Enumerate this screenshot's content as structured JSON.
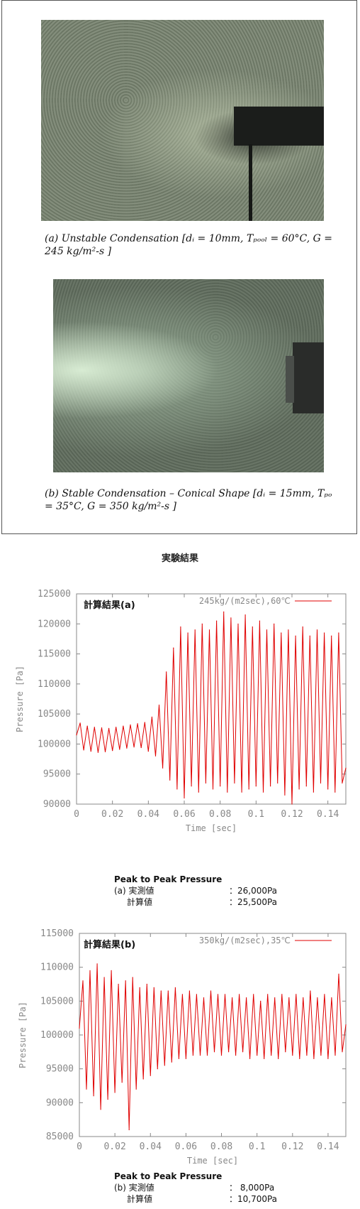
{
  "photos": {
    "caption_a": "(a) Unstable Condensation [dᵢ = 10mm, Tₚₒₒₗ = 60°C, G = 245 kg/m²-s ]",
    "caption_b": "(b) Stable Condensation – Conical Shape [dᵢ = 15mm, Tₚₒ = 35°C, G = 350 kg/m²-s ]"
  },
  "section_title": "実験結果",
  "charts": {
    "a": {
      "inset_label": "計算結果(a)",
      "ptp": {
        "title": "Peak to Peak Pressure",
        "measured_label": "(a) 実測値",
        "measured_value": "：26,000Pa",
        "computed_label": "計算値",
        "computed_value": "：25,500Pa"
      }
    },
    "b": {
      "inset_label": "計算結果(b)",
      "ptp": {
        "title": "Peak to Peak Pressure",
        "measured_label": "(b) 実測値",
        "measured_value": "： 8,000Pa",
        "computed_label": "計算値",
        "computed_value": "：10,700Pa"
      }
    }
  },
  "chart_data": [
    {
      "type": "line",
      "xlabel": "Time [sec]",
      "ylabel": "Pressure [Pa]",
      "xlim": [
        0,
        0.15
      ],
      "ylim": [
        90000,
        125000
      ],
      "xticks": [
        "0",
        "0.02",
        "0.04",
        "0.06",
        "0.08",
        "0.1",
        "0.12",
        "0.14"
      ],
      "yticks": [
        "90000",
        "95000",
        "100000",
        "105000",
        "110000",
        "115000",
        "120000",
        "125000"
      ],
      "legend": "top-right",
      "series": [
        {
          "name": "245kg/(m2sec),60℃",
          "color": "#e00000",
          "x": [
            0,
            0.002,
            0.004,
            0.006,
            0.008,
            0.01,
            0.012,
            0.014,
            0.016,
            0.018,
            0.02,
            0.022,
            0.024,
            0.026,
            0.028,
            0.03,
            0.032,
            0.034,
            0.036,
            0.038,
            0.04,
            0.042,
            0.044,
            0.046,
            0.048,
            0.05,
            0.052,
            0.054,
            0.056,
            0.058,
            0.06,
            0.062,
            0.064,
            0.066,
            0.068,
            0.07,
            0.072,
            0.074,
            0.076,
            0.078,
            0.08,
            0.082,
            0.084,
            0.086,
            0.088,
            0.09,
            0.092,
            0.094,
            0.096,
            0.098,
            0.1,
            0.102,
            0.104,
            0.106,
            0.108,
            0.11,
            0.112,
            0.114,
            0.116,
            0.118,
            0.12,
            0.122,
            0.124,
            0.126,
            0.128,
            0.13,
            0.132,
            0.134,
            0.136,
            0.138,
            0.14,
            0.142,
            0.144,
            0.146,
            0.148,
            0.15
          ],
          "y": [
            101500,
            103500,
            99000,
            103000,
            98800,
            102800,
            98600,
            102700,
            98700,
            102600,
            98900,
            102800,
            99100,
            103000,
            99300,
            103200,
            99500,
            103400,
            99400,
            103600,
            98800,
            104500,
            98000,
            106500,
            96000,
            112000,
            94000,
            116000,
            92500,
            119500,
            91000,
            118500,
            93000,
            119000,
            92000,
            120000,
            93500,
            119000,
            92500,
            120500,
            93000,
            122000,
            92000,
            121000,
            93500,
            120000,
            92000,
            121500,
            92500,
            119500,
            93000,
            120500,
            92000,
            119000,
            93000,
            120000,
            93500,
            118500,
            91500,
            119000,
            90000,
            118000,
            92500,
            119500,
            93000,
            118000,
            92000,
            119000,
            93500,
            118500,
            92500,
            118000,
            92000,
            118500,
            93500,
            96000
          ]
        }
      ]
    },
    {
      "type": "line",
      "xlabel": "Time [sec]",
      "ylabel": "Pressure [Pa]",
      "xlim": [
        0,
        0.15
      ],
      "ylim": [
        85000,
        115000
      ],
      "xticks": [
        "0",
        "0.02",
        "0.04",
        "0.06",
        "0.08",
        "0.1",
        "0.12",
        "0.14"
      ],
      "yticks": [
        "85000",
        "90000",
        "95000",
        "100000",
        "105000",
        "110000",
        "115000"
      ],
      "legend": "top-right",
      "series": [
        {
          "name": "350kg/(m2sec),35℃",
          "color": "#e00000",
          "x": [
            0,
            0.002,
            0.004,
            0.006,
            0.008,
            0.01,
            0.012,
            0.014,
            0.016,
            0.018,
            0.02,
            0.022,
            0.024,
            0.026,
            0.028,
            0.03,
            0.032,
            0.034,
            0.036,
            0.038,
            0.04,
            0.042,
            0.044,
            0.046,
            0.048,
            0.05,
            0.052,
            0.054,
            0.056,
            0.058,
            0.06,
            0.062,
            0.064,
            0.066,
            0.068,
            0.07,
            0.072,
            0.074,
            0.076,
            0.078,
            0.08,
            0.082,
            0.084,
            0.086,
            0.088,
            0.09,
            0.092,
            0.094,
            0.096,
            0.098,
            0.1,
            0.102,
            0.104,
            0.106,
            0.108,
            0.11,
            0.112,
            0.114,
            0.116,
            0.118,
            0.12,
            0.122,
            0.124,
            0.126,
            0.128,
            0.13,
            0.132,
            0.134,
            0.136,
            0.138,
            0.14,
            0.142,
            0.144,
            0.146,
            0.148,
            0.15
          ],
          "y": [
            101000,
            108000,
            92000,
            109500,
            91000,
            110500,
            89000,
            108500,
            90500,
            109500,
            91500,
            107500,
            93000,
            108000,
            86000,
            108500,
            92000,
            107000,
            93500,
            107500,
            94000,
            107000,
            95000,
            106500,
            95500,
            106500,
            96000,
            107000,
            96500,
            106000,
            96500,
            106500,
            97000,
            106000,
            97000,
            105500,
            97000,
            106500,
            97500,
            106000,
            97000,
            106000,
            97500,
            105500,
            97000,
            106000,
            97500,
            105500,
            96500,
            106000,
            97000,
            105000,
            96500,
            106000,
            97000,
            105500,
            96500,
            106000,
            97500,
            105500,
            97000,
            106000,
            96500,
            105500,
            97000,
            106500,
            96500,
            105500,
            97000,
            106000,
            96500,
            105500,
            97000,
            109000,
            97500,
            101500
          ]
        }
      ]
    }
  ]
}
